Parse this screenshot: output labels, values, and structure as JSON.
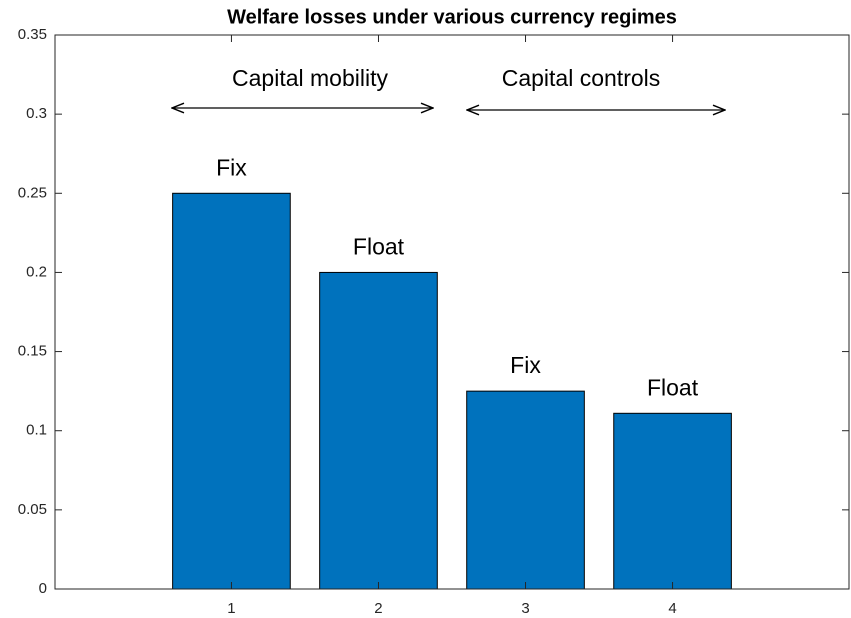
{
  "chart_data": {
    "type": "bar",
    "title": "Welfare losses under various currency regimes",
    "x": [
      1,
      2,
      3,
      4
    ],
    "values": [
      0.25,
      0.2,
      0.125,
      0.111
    ],
    "bar_labels": [
      "Fix",
      "Float",
      "Fix",
      "Float"
    ],
    "annotations": [
      "Capital mobility",
      "Capital controls"
    ],
    "color": "#0072bd",
    "xlim": [
      -0.2,
      5.2
    ],
    "xticks": [
      1,
      2,
      3,
      4
    ],
    "ylim": [
      0,
      0.35
    ],
    "yticks": [
      0,
      0.05,
      0.1,
      0.15,
      0.2,
      0.25,
      0.3,
      0.35
    ]
  }
}
